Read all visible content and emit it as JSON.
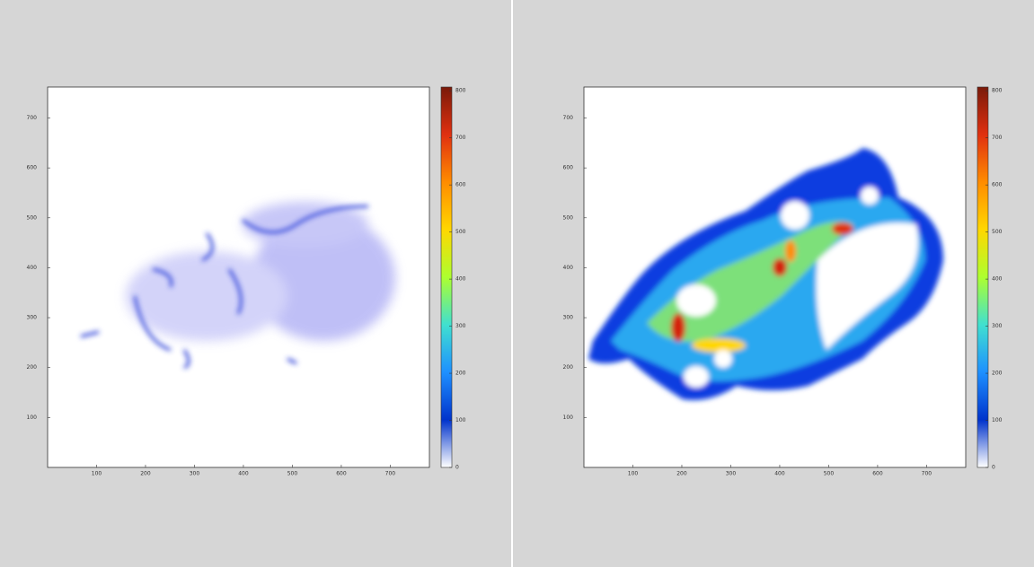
{
  "chart_data": [
    {
      "type": "heatmap",
      "xlim": [
        0,
        780
      ],
      "ylim": [
        0,
        762
      ],
      "xticks": [
        100,
        200,
        300,
        400,
        500,
        600,
        700
      ],
      "yticks": [
        100,
        200,
        300,
        400,
        500,
        600,
        700
      ],
      "colorbar": {
        "lim": [
          0,
          808
        ],
        "ticks": [
          0,
          100,
          200,
          300,
          400,
          500,
          600,
          700,
          800
        ],
        "colors": [
          "#ffffff",
          "#0033cc",
          "#1e90ff",
          "#40e0d0",
          "#adff2f",
          "#ffd700",
          "#ff8c00",
          "#e03010",
          "#7a1a0a"
        ]
      }
    },
    {
      "type": "heatmap",
      "xlim": [
        0,
        780
      ],
      "ylim": [
        0,
        762
      ],
      "xticks": [
        100,
        200,
        300,
        400,
        500,
        600,
        700
      ],
      "yticks": [
        100,
        200,
        300,
        400,
        500,
        600,
        700
      ],
      "colorbar": {
        "lim": [
          0,
          808
        ],
        "ticks": [
          0,
          100,
          200,
          300,
          400,
          500,
          600,
          700,
          800
        ],
        "colors": [
          "#ffffff",
          "#0033cc",
          "#1e90ff",
          "#40e0d0",
          "#adff2f",
          "#ffd700",
          "#ff8c00",
          "#e03010",
          "#7a1a0a"
        ]
      }
    }
  ]
}
